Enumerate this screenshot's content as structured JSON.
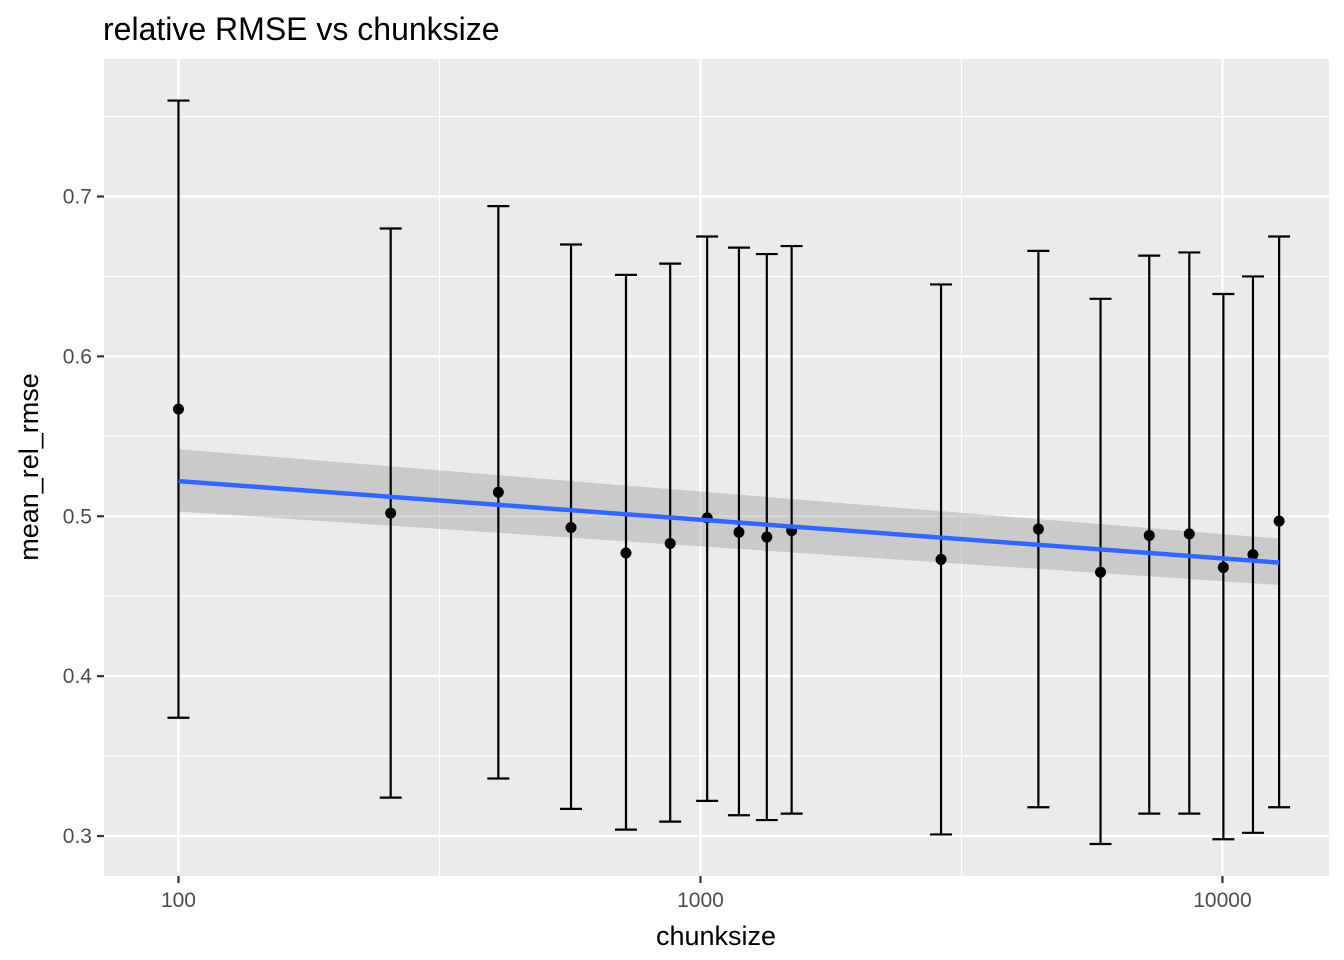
{
  "chart_data": {
    "type": "scatter",
    "title": "relative RMSE vs chunksize",
    "xlabel": "chunksize",
    "ylabel": "mean_rel_rmse",
    "x_scale": "log10",
    "xlim": [
      72,
      16000
    ],
    "ylim": [
      0.275,
      0.786
    ],
    "x_ticks": [
      100,
      1000,
      10000
    ],
    "x_tick_labels": [
      "100",
      "1000",
      "10000"
    ],
    "y_ticks": [
      0.3,
      0.4,
      0.5,
      0.6,
      0.7
    ],
    "y_tick_labels": [
      "0.3",
      "0.4",
      "0.5",
      "0.6",
      "0.7"
    ],
    "grid": true,
    "legend": "none",
    "points": [
      {
        "x": 100,
        "y": 0.567,
        "lower": 0.374,
        "upper": 0.76
      },
      {
        "x": 255,
        "y": 0.502,
        "lower": 0.324,
        "upper": 0.68
      },
      {
        "x": 410,
        "y": 0.515,
        "lower": 0.336,
        "upper": 0.694
      },
      {
        "x": 565,
        "y": 0.493,
        "lower": 0.317,
        "upper": 0.67
      },
      {
        "x": 720,
        "y": 0.477,
        "lower": 0.304,
        "upper": 0.651
      },
      {
        "x": 875,
        "y": 0.483,
        "lower": 0.309,
        "upper": 0.658
      },
      {
        "x": 1030,
        "y": 0.499,
        "lower": 0.322,
        "upper": 0.675
      },
      {
        "x": 1185,
        "y": 0.49,
        "lower": 0.313,
        "upper": 0.668
      },
      {
        "x": 1340,
        "y": 0.487,
        "lower": 0.31,
        "upper": 0.664
      },
      {
        "x": 1495,
        "y": 0.491,
        "lower": 0.314,
        "upper": 0.669
      },
      {
        "x": 2890,
        "y": 0.473,
        "lower": 0.301,
        "upper": 0.645
      },
      {
        "x": 4440,
        "y": 0.492,
        "lower": 0.318,
        "upper": 0.666
      },
      {
        "x": 5840,
        "y": 0.465,
        "lower": 0.295,
        "upper": 0.636
      },
      {
        "x": 7240,
        "y": 0.488,
        "lower": 0.314,
        "upper": 0.663
      },
      {
        "x": 8640,
        "y": 0.489,
        "lower": 0.314,
        "upper": 0.665
      },
      {
        "x": 10040,
        "y": 0.468,
        "lower": 0.298,
        "upper": 0.639
      },
      {
        "x": 11440,
        "y": 0.476,
        "lower": 0.302,
        "upper": 0.65
      },
      {
        "x": 12840,
        "y": 0.497,
        "lower": 0.318,
        "upper": 0.675
      }
    ],
    "trend_line": {
      "method": "linear fit on log10(x)",
      "x_range": [
        100,
        12840
      ],
      "y_start": 0.522,
      "y_end": 0.471,
      "band_start": [
        0.503,
        0.542
      ],
      "band_end": [
        0.457,
        0.486
      ]
    },
    "colors": {
      "panel_background": "#ebebeb",
      "grid": "#ffffff",
      "points": "#000000",
      "error_bars": "#000000",
      "trend_line": "#3366ff",
      "confidence_band": "#999999"
    }
  }
}
